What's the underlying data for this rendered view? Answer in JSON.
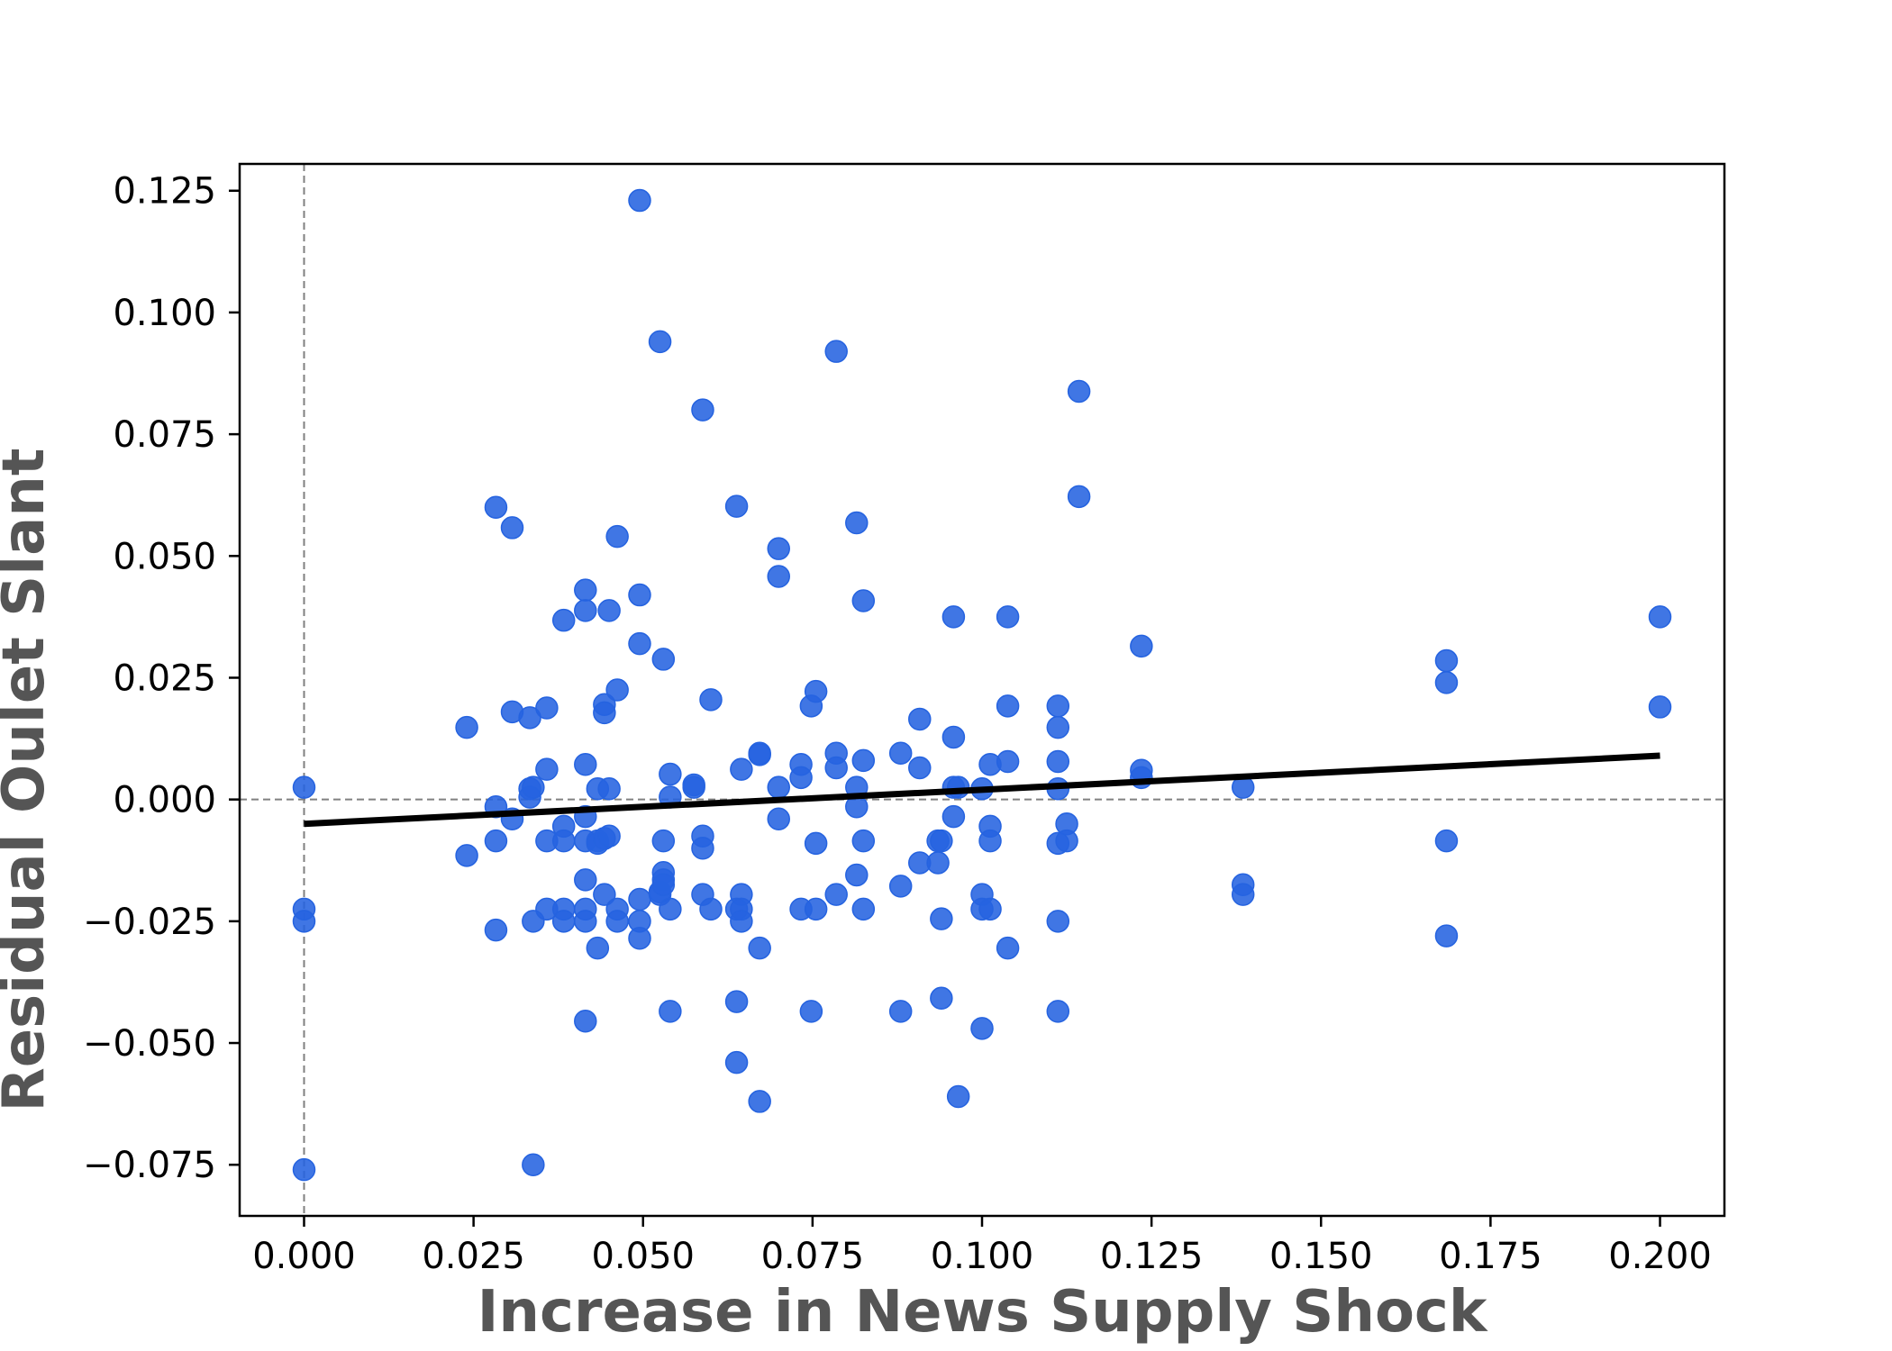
{
  "chart_data": {
    "type": "scatter",
    "title": "",
    "xlabel": "Increase in News Supply Shock",
    "ylabel": "Residual Oulet Slant",
    "xlim": [
      -0.0095,
      0.2095
    ],
    "ylim": [
      -0.0855,
      0.1305
    ],
    "xticks": [
      0.0,
      0.025,
      0.05,
      0.075,
      0.1,
      0.125,
      0.15,
      0.175,
      0.2
    ],
    "xtick_labels": [
      "0.000",
      "0.025",
      "0.050",
      "0.075",
      "0.100",
      "0.125",
      "0.150",
      "0.175",
      "0.200"
    ],
    "yticks": [
      -0.075,
      -0.05,
      -0.025,
      0.0,
      0.025,
      0.05,
      0.075,
      0.1,
      0.125
    ],
    "ytick_labels": [
      "−0.075",
      "−0.050",
      "−0.025",
      "0.000",
      "0.025",
      "0.050",
      "0.075",
      "0.100",
      "0.125"
    ],
    "grid": false,
    "reference_lines": {
      "x": 0.0,
      "y": 0.0,
      "style": "dashed",
      "color": "#808080"
    },
    "marker_color": "#2563e0",
    "fit_line_color": "#000000",
    "fit_line": {
      "x": [
        0.0,
        0.2
      ],
      "y": [
        -0.005,
        0.009
      ]
    },
    "series": [
      {
        "points": [
          [
            0.0,
            0.0025
          ],
          [
            0.0,
            -0.0225
          ],
          [
            0.0,
            -0.025
          ],
          [
            0.0,
            -0.076
          ],
          [
            0.024,
            0.0148
          ],
          [
            0.024,
            -0.0115
          ],
          [
            0.0283,
            0.06
          ],
          [
            0.0283,
            -0.0015
          ],
          [
            0.0283,
            -0.0085
          ],
          [
            0.0283,
            -0.0268
          ],
          [
            0.0307,
            0.0558
          ],
          [
            0.0307,
            0.018
          ],
          [
            0.0307,
            -0.004
          ],
          [
            0.0333,
            0.0168
          ],
          [
            0.0333,
            0.0022
          ],
          [
            0.0333,
            0.0005
          ],
          [
            0.0338,
            0.0025
          ],
          [
            0.0338,
            -0.025
          ],
          [
            0.0338,
            -0.075
          ],
          [
            0.0358,
            0.0188
          ],
          [
            0.0358,
            0.0062
          ],
          [
            0.0358,
            -0.0085
          ],
          [
            0.0358,
            -0.0225
          ],
          [
            0.0383,
            0.0368
          ],
          [
            0.0383,
            -0.0055
          ],
          [
            0.0383,
            -0.0085
          ],
          [
            0.0383,
            -0.0225
          ],
          [
            0.0383,
            -0.025
          ],
          [
            0.0415,
            0.043
          ],
          [
            0.0415,
            0.0388
          ],
          [
            0.0415,
            0.0072
          ],
          [
            0.0415,
            -0.0035
          ],
          [
            0.0415,
            -0.0085
          ],
          [
            0.0415,
            -0.0165
          ],
          [
            0.0415,
            -0.0225
          ],
          [
            0.0415,
            -0.025
          ],
          [
            0.0415,
            -0.0455
          ],
          [
            0.0433,
            0.0022
          ],
          [
            0.0433,
            -0.0085
          ],
          [
            0.0433,
            -0.009
          ],
          [
            0.0433,
            -0.0305
          ],
          [
            0.0443,
            0.0195
          ],
          [
            0.0443,
            0.0178
          ],
          [
            0.0443,
            -0.008
          ],
          [
            0.0443,
            -0.0195
          ],
          [
            0.045,
            0.0388
          ],
          [
            0.045,
            0.0022
          ],
          [
            0.045,
            -0.0075
          ],
          [
            0.0462,
            0.054
          ],
          [
            0.0462,
            0.0225
          ],
          [
            0.0462,
            -0.0225
          ],
          [
            0.0462,
            -0.025
          ],
          [
            0.0495,
            0.123
          ],
          [
            0.0495,
            0.042
          ],
          [
            0.0495,
            0.032
          ],
          [
            0.0495,
            -0.0205
          ],
          [
            0.0495,
            -0.025
          ],
          [
            0.0495,
            -0.0285
          ],
          [
            0.0525,
            0.094
          ],
          [
            0.0525,
            -0.019
          ],
          [
            0.0525,
            -0.0195
          ],
          [
            0.053,
            0.0288
          ],
          [
            0.053,
            -0.0085
          ],
          [
            0.053,
            -0.015
          ],
          [
            0.053,
            -0.0165
          ],
          [
            0.053,
            -0.0175
          ],
          [
            0.054,
            0.0052
          ],
          [
            0.054,
            0.0005
          ],
          [
            0.054,
            -0.0225
          ],
          [
            0.054,
            -0.0435
          ],
          [
            0.0575,
            0.003
          ],
          [
            0.0575,
            0.0025
          ],
          [
            0.0588,
            0.08
          ],
          [
            0.0588,
            -0.0075
          ],
          [
            0.0588,
            -0.01
          ],
          [
            0.0588,
            -0.0195
          ],
          [
            0.06,
            0.0205
          ],
          [
            0.06,
            -0.0225
          ],
          [
            0.0638,
            0.0602
          ],
          [
            0.0638,
            -0.0415
          ],
          [
            0.0638,
            -0.054
          ],
          [
            0.0638,
            -0.0225
          ],
          [
            0.0645,
            0.0062
          ],
          [
            0.0645,
            -0.0195
          ],
          [
            0.0645,
            -0.0225
          ],
          [
            0.0645,
            -0.025
          ],
          [
            0.0672,
            0.0095
          ],
          [
            0.0672,
            0.0092
          ],
          [
            0.0672,
            -0.0305
          ],
          [
            0.0672,
            -0.062
          ],
          [
            0.07,
            0.0515
          ],
          [
            0.07,
            0.0458
          ],
          [
            0.07,
            0.0025
          ],
          [
            0.07,
            -0.004
          ],
          [
            0.0733,
            0.0072
          ],
          [
            0.0733,
            0.0045
          ],
          [
            0.0733,
            -0.0225
          ],
          [
            0.0748,
            0.0192
          ],
          [
            0.0748,
            -0.0435
          ],
          [
            0.0755,
            0.0222
          ],
          [
            0.0755,
            -0.009
          ],
          [
            0.0755,
            -0.0225
          ],
          [
            0.0785,
            0.092
          ],
          [
            0.0785,
            0.0095
          ],
          [
            0.0785,
            0.0065
          ],
          [
            0.0785,
            -0.0195
          ],
          [
            0.0815,
            0.0568
          ],
          [
            0.0815,
            0.0025
          ],
          [
            0.0815,
            -0.0015
          ],
          [
            0.0815,
            -0.0155
          ],
          [
            0.0825,
            0.0408
          ],
          [
            0.0825,
            0.008
          ],
          [
            0.0825,
            -0.0085
          ],
          [
            0.0825,
            -0.0225
          ],
          [
            0.088,
            0.0095
          ],
          [
            0.088,
            -0.0178
          ],
          [
            0.088,
            -0.0435
          ],
          [
            0.0908,
            0.0165
          ],
          [
            0.0908,
            0.0065
          ],
          [
            0.0908,
            -0.013
          ],
          [
            0.0935,
            -0.0085
          ],
          [
            0.0935,
            -0.013
          ],
          [
            0.094,
            -0.0085
          ],
          [
            0.094,
            -0.0245
          ],
          [
            0.094,
            -0.0408
          ],
          [
            0.0958,
            0.0375
          ],
          [
            0.0958,
            0.0128
          ],
          [
            0.0958,
            0.0025
          ],
          [
            0.0958,
            -0.0035
          ],
          [
            0.0965,
            0.0025
          ],
          [
            0.0965,
            -0.061
          ],
          [
            0.1,
            0.0022
          ],
          [
            0.1,
            -0.0195
          ],
          [
            0.1,
            -0.0225
          ],
          [
            0.1,
            -0.047
          ],
          [
            0.1012,
            0.0072
          ],
          [
            0.1012,
            -0.0055
          ],
          [
            0.1012,
            -0.0085
          ],
          [
            0.1012,
            -0.0225
          ],
          [
            0.1038,
            0.0375
          ],
          [
            0.1038,
            0.0192
          ],
          [
            0.1038,
            0.0078
          ],
          [
            0.1038,
            -0.0305
          ],
          [
            0.1112,
            0.0192
          ],
          [
            0.1112,
            0.0148
          ],
          [
            0.1112,
            0.0078
          ],
          [
            0.1112,
            0.0022
          ],
          [
            0.1112,
            -0.009
          ],
          [
            0.1112,
            -0.025
          ],
          [
            0.1112,
            -0.0435
          ],
          [
            0.1125,
            -0.005
          ],
          [
            0.1125,
            -0.0085
          ],
          [
            0.1143,
            0.0838
          ],
          [
            0.1143,
            0.0622
          ],
          [
            0.1235,
            0.0315
          ],
          [
            0.1235,
            0.006
          ],
          [
            0.1235,
            0.0045
          ],
          [
            0.1385,
            0.0025
          ],
          [
            0.1385,
            -0.0175
          ],
          [
            0.1385,
            -0.0195
          ],
          [
            0.1685,
            0.0285
          ],
          [
            0.1685,
            0.024
          ],
          [
            0.1685,
            -0.0085
          ],
          [
            0.1685,
            -0.028
          ],
          [
            0.2,
            0.0375
          ],
          [
            0.2,
            0.019
          ]
        ]
      }
    ]
  }
}
